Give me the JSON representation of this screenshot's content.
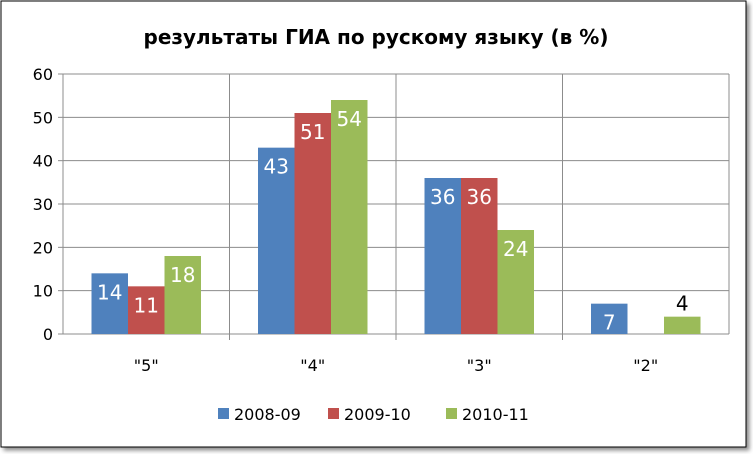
{
  "chart_data": {
    "type": "bar",
    "title": "результаты ГИА по рускому языку (в %)",
    "categories": [
      "\"5\"",
      "\"4\"",
      "\"3\"",
      "\"2\""
    ],
    "series": [
      {
        "name": "2008-09",
        "color": "#4F81BD",
        "values": [
          14,
          43,
          36,
          7
        ]
      },
      {
        "name": "2009-10",
        "color": "#C0504D",
        "values": [
          11,
          51,
          36,
          null
        ]
      },
      {
        "name": "2010-11",
        "color": "#9BBB59",
        "values": [
          18,
          54,
          24,
          4
        ]
      }
    ],
    "ylim": [
      0,
      60
    ],
    "yticks": [
      0,
      10,
      20,
      30,
      40,
      50,
      60
    ],
    "grid": true,
    "legend": "bottom"
  }
}
